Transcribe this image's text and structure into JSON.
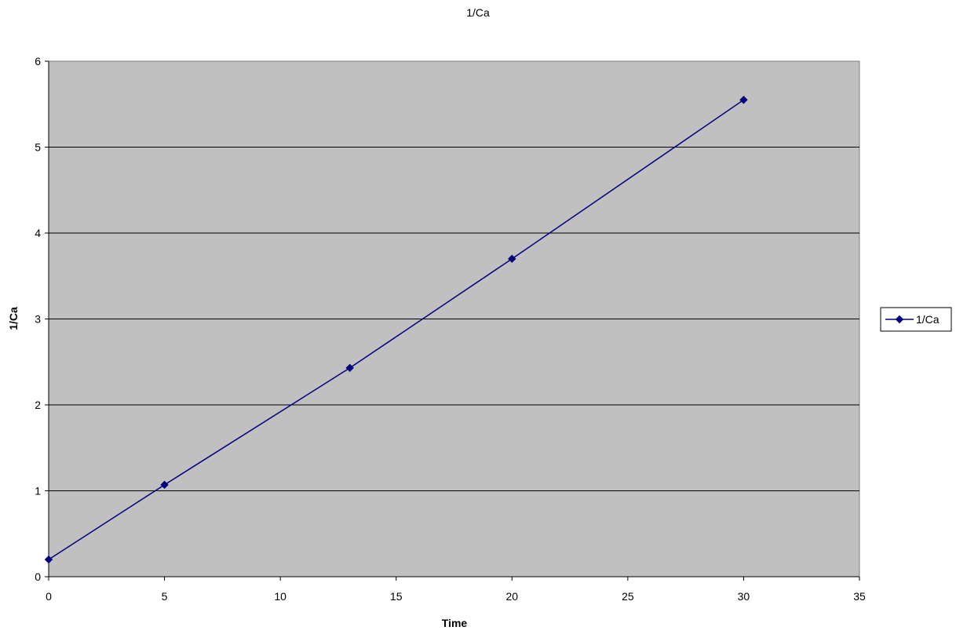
{
  "chart_data": {
    "type": "line",
    "title": "1/Ca",
    "xlabel": "Time",
    "ylabel": "1/Ca",
    "xlim": [
      0,
      35
    ],
    "ylim": [
      0,
      6
    ],
    "x_ticks": [
      0,
      5,
      10,
      15,
      20,
      25,
      30,
      35
    ],
    "y_ticks": [
      0,
      1,
      2,
      3,
      4,
      5,
      6
    ],
    "grid": "horizontal major gridlines",
    "plot_background": "#c0c0c0",
    "legend_position": "right",
    "series": [
      {
        "name": "1/Ca",
        "color": "#000080",
        "marker": "diamond",
        "x": [
          0,
          5,
          13,
          20,
          30
        ],
        "y": [
          0.2,
          1.07,
          2.43,
          3.7,
          5.55
        ]
      }
    ]
  }
}
